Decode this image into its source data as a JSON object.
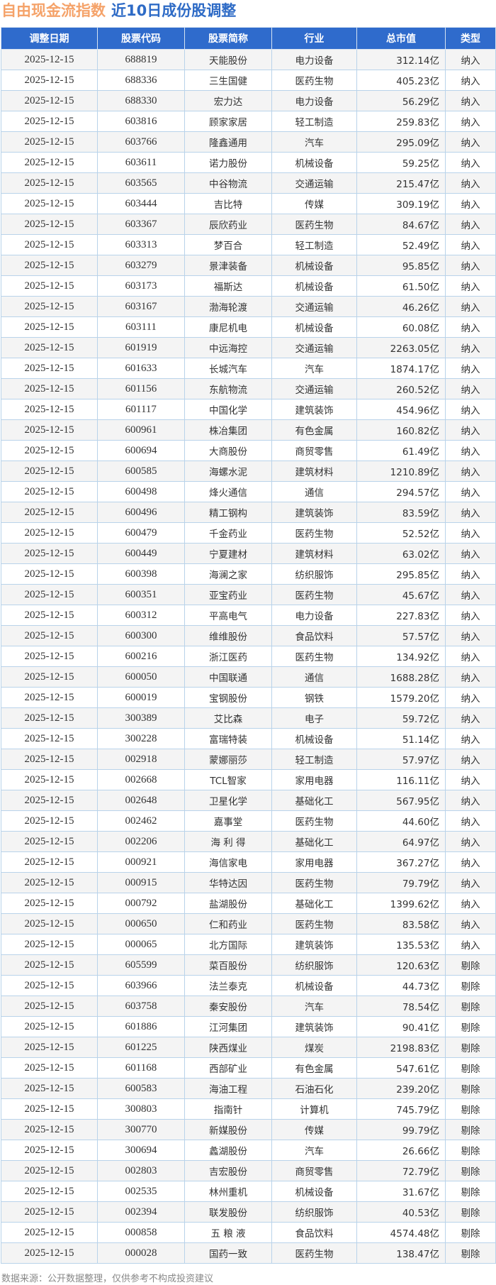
{
  "header": {
    "title_index": "自由现金流指数",
    "title_sub": "近10日成份股调整"
  },
  "colors": {
    "header_bg": "#2f6bcc",
    "title_orange": "#f5a36a",
    "title_blue": "#2e6bc6"
  },
  "table": {
    "columns": [
      "调整日期",
      "股票代码",
      "股票简称",
      "行业",
      "总市值",
      "类型"
    ],
    "rows": [
      [
        "2025-12-15",
        "688819",
        "天能股份",
        "电力设备",
        "312.14亿",
        "纳入"
      ],
      [
        "2025-12-15",
        "688336",
        "三生国健",
        "医药生物",
        "405.23亿",
        "纳入"
      ],
      [
        "2025-12-15",
        "688330",
        "宏力达",
        "电力设备",
        "56.29亿",
        "纳入"
      ],
      [
        "2025-12-15",
        "603816",
        "顾家家居",
        "轻工制造",
        "259.83亿",
        "纳入"
      ],
      [
        "2025-12-15",
        "603766",
        "隆鑫通用",
        "汽车",
        "295.09亿",
        "纳入"
      ],
      [
        "2025-12-15",
        "603611",
        "诺力股份",
        "机械设备",
        "59.25亿",
        "纳入"
      ],
      [
        "2025-12-15",
        "603565",
        "中谷物流",
        "交通运输",
        "215.47亿",
        "纳入"
      ],
      [
        "2025-12-15",
        "603444",
        "吉比特",
        "传媒",
        "309.19亿",
        "纳入"
      ],
      [
        "2025-12-15",
        "603367",
        "辰欣药业",
        "医药生物",
        "84.67亿",
        "纳入"
      ],
      [
        "2025-12-15",
        "603313",
        "梦百合",
        "轻工制造",
        "52.49亿",
        "纳入"
      ],
      [
        "2025-12-15",
        "603279",
        "景津装备",
        "机械设备",
        "95.85亿",
        "纳入"
      ],
      [
        "2025-12-15",
        "603173",
        "福斯达",
        "机械设备",
        "61.50亿",
        "纳入"
      ],
      [
        "2025-12-15",
        "603167",
        "渤海轮渡",
        "交通运输",
        "46.26亿",
        "纳入"
      ],
      [
        "2025-12-15",
        "603111",
        "康尼机电",
        "机械设备",
        "60.08亿",
        "纳入"
      ],
      [
        "2025-12-15",
        "601919",
        "中远海控",
        "交通运输",
        "2263.05亿",
        "纳入"
      ],
      [
        "2025-12-15",
        "601633",
        "长城汽车",
        "汽车",
        "1874.17亿",
        "纳入"
      ],
      [
        "2025-12-15",
        "601156",
        "东航物流",
        "交通运输",
        "260.52亿",
        "纳入"
      ],
      [
        "2025-12-15",
        "601117",
        "中国化学",
        "建筑装饰",
        "454.96亿",
        "纳入"
      ],
      [
        "2025-12-15",
        "600961",
        "株冶集团",
        "有色金属",
        "160.82亿",
        "纳入"
      ],
      [
        "2025-12-15",
        "600694",
        "大商股份",
        "商贸零售",
        "61.49亿",
        "纳入"
      ],
      [
        "2025-12-15",
        "600585",
        "海螺水泥",
        "建筑材料",
        "1210.89亿",
        "纳入"
      ],
      [
        "2025-12-15",
        "600498",
        "烽火通信",
        "通信",
        "294.57亿",
        "纳入"
      ],
      [
        "2025-12-15",
        "600496",
        "精工钢构",
        "建筑装饰",
        "83.59亿",
        "纳入"
      ],
      [
        "2025-12-15",
        "600479",
        "千金药业",
        "医药生物",
        "52.52亿",
        "纳入"
      ],
      [
        "2025-12-15",
        "600449",
        "宁夏建材",
        "建筑材料",
        "63.02亿",
        "纳入"
      ],
      [
        "2025-12-15",
        "600398",
        "海澜之家",
        "纺织服饰",
        "295.85亿",
        "纳入"
      ],
      [
        "2025-12-15",
        "600351",
        "亚宝药业",
        "医药生物",
        "45.67亿",
        "纳入"
      ],
      [
        "2025-12-15",
        "600312",
        "平高电气",
        "电力设备",
        "227.83亿",
        "纳入"
      ],
      [
        "2025-12-15",
        "600300",
        "维维股份",
        "食品饮料",
        "57.57亿",
        "纳入"
      ],
      [
        "2025-12-15",
        "600216",
        "浙江医药",
        "医药生物",
        "134.92亿",
        "纳入"
      ],
      [
        "2025-12-15",
        "600050",
        "中国联通",
        "通信",
        "1688.28亿",
        "纳入"
      ],
      [
        "2025-12-15",
        "600019",
        "宝钢股份",
        "钢铁",
        "1579.20亿",
        "纳入"
      ],
      [
        "2025-12-15",
        "300389",
        "艾比森",
        "电子",
        "59.72亿",
        "纳入"
      ],
      [
        "2025-12-15",
        "300228",
        "富瑞特装",
        "机械设备",
        "51.14亿",
        "纳入"
      ],
      [
        "2025-12-15",
        "002918",
        "蒙娜丽莎",
        "轻工制造",
        "57.97亿",
        "纳入"
      ],
      [
        "2025-12-15",
        "002668",
        "TCL智家",
        "家用电器",
        "116.11亿",
        "纳入"
      ],
      [
        "2025-12-15",
        "002648",
        "卫星化学",
        "基础化工",
        "567.95亿",
        "纳入"
      ],
      [
        "2025-12-15",
        "002462",
        "嘉事堂",
        "医药生物",
        "44.60亿",
        "纳入"
      ],
      [
        "2025-12-15",
        "002206",
        "海 利 得",
        "基础化工",
        "64.97亿",
        "纳入"
      ],
      [
        "2025-12-15",
        "000921",
        "海信家电",
        "家用电器",
        "367.27亿",
        "纳入"
      ],
      [
        "2025-12-15",
        "000915",
        "华特达因",
        "医药生物",
        "79.79亿",
        "纳入"
      ],
      [
        "2025-12-15",
        "000792",
        "盐湖股份",
        "基础化工",
        "1399.62亿",
        "纳入"
      ],
      [
        "2025-12-15",
        "000650",
        "仁和药业",
        "医药生物",
        "83.58亿",
        "纳入"
      ],
      [
        "2025-12-15",
        "000065",
        "北方国际",
        "建筑装饰",
        "135.53亿",
        "纳入"
      ],
      [
        "2025-12-15",
        "605599",
        "菜百股份",
        "纺织服饰",
        "120.63亿",
        "剔除"
      ],
      [
        "2025-12-15",
        "603966",
        "法兰泰克",
        "机械设备",
        "44.73亿",
        "剔除"
      ],
      [
        "2025-12-15",
        "603758",
        "秦安股份",
        "汽车",
        "78.54亿",
        "剔除"
      ],
      [
        "2025-12-15",
        "601886",
        "江河集团",
        "建筑装饰",
        "90.41亿",
        "剔除"
      ],
      [
        "2025-12-15",
        "601225",
        "陕西煤业",
        "煤炭",
        "2198.83亿",
        "剔除"
      ],
      [
        "2025-12-15",
        "601168",
        "西部矿业",
        "有色金属",
        "547.61亿",
        "剔除"
      ],
      [
        "2025-12-15",
        "600583",
        "海油工程",
        "石油石化",
        "239.20亿",
        "剔除"
      ],
      [
        "2025-12-15",
        "300803",
        "指南针",
        "计算机",
        "745.79亿",
        "剔除"
      ],
      [
        "2025-12-15",
        "300770",
        "新媒股份",
        "传媒",
        "99.79亿",
        "剔除"
      ],
      [
        "2025-12-15",
        "300694",
        "蠡湖股份",
        "汽车",
        "26.66亿",
        "剔除"
      ],
      [
        "2025-12-15",
        "002803",
        "吉宏股份",
        "商贸零售",
        "72.79亿",
        "剔除"
      ],
      [
        "2025-12-15",
        "002535",
        "林州重机",
        "机械设备",
        "31.67亿",
        "剔除"
      ],
      [
        "2025-12-15",
        "002394",
        "联发股份",
        "纺织服饰",
        "40.53亿",
        "剔除"
      ],
      [
        "2025-12-15",
        "000858",
        "五 粮 液",
        "食品饮料",
        "4574.48亿",
        "剔除"
      ],
      [
        "2025-12-15",
        "000028",
        "国药一致",
        "医药生物",
        "138.47亿",
        "剔除"
      ]
    ]
  },
  "footer": {
    "source": "数据来源：公开数据整理，仅供参考不构成投资建议"
  }
}
